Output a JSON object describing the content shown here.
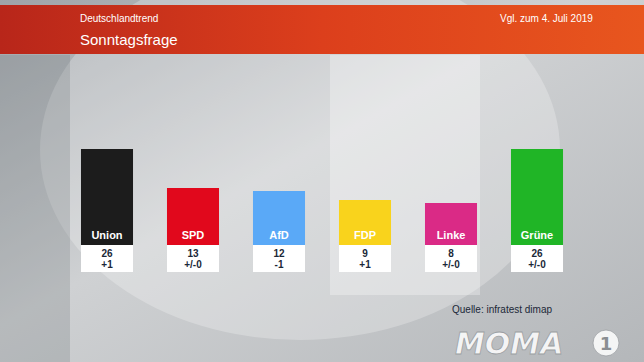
{
  "chart_data": {
    "type": "bar",
    "subtitle": "Deutschlandtrend",
    "title": "Sonntagsfrage",
    "comparison_note": "Vgl. zum 4. Juli 2019",
    "categories": [
      "Union",
      "SPD",
      "AfD",
      "FDP",
      "Linke",
      "Grüne"
    ],
    "values": [
      26,
      13,
      12,
      9,
      8,
      26
    ],
    "changes": [
      "+1",
      "+/-0",
      "-1",
      "+1",
      "+/-0",
      "+/-0"
    ],
    "colors": [
      "#1c1c1c",
      "#e1081c",
      "#5aa9f7",
      "#f9d31c",
      "#da2a86",
      "#20b526"
    ],
    "ylim": [
      0,
      26
    ],
    "data_labels": true,
    "tick_labels": "x",
    "source": "Quelle: infratest dimap",
    "logo": "MOMA",
    "channel": "1"
  }
}
